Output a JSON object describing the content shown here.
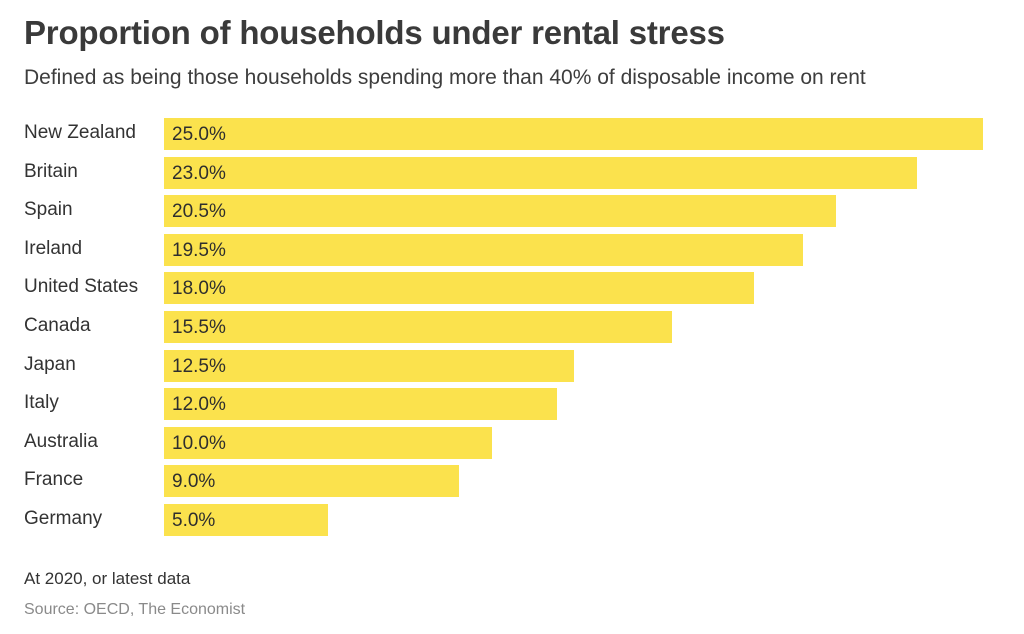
{
  "chart_data": {
    "type": "bar",
    "orientation": "horizontal",
    "title": "Proportion of households under rental stress",
    "subtitle": "Defined as being those households spending more than 40% of disposable income on rent",
    "categories": [
      "New Zealand",
      "Britain",
      "Spain",
      "Ireland",
      "United States",
      "Canada",
      "Japan",
      "Italy",
      "Australia",
      "France",
      "Germany"
    ],
    "values": [
      25.0,
      23.0,
      20.5,
      19.5,
      18.0,
      15.5,
      12.5,
      12.0,
      10.0,
      9.0,
      5.0
    ],
    "data_labels": [
      "25.0%",
      "23.0%",
      "20.5%",
      "19.5%",
      "18.0%",
      "15.5%",
      "12.5%",
      "12.0%",
      "10.0%",
      "9.0%",
      "5.0%"
    ],
    "unit": "%",
    "xlim": [
      0,
      25
    ],
    "grid": false,
    "legend": "none",
    "bar_color": "#fbe24d",
    "note": "At 2020, or latest data",
    "source": "Source: OECD, The Economist"
  }
}
